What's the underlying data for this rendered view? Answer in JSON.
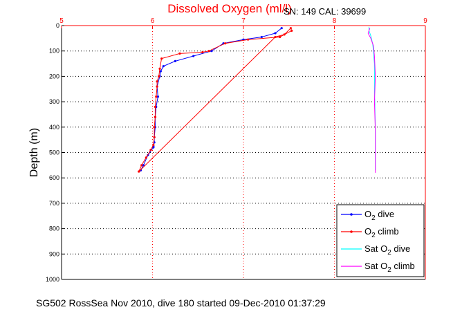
{
  "header": {
    "serial_text": "SN: 149  CAL: 39699"
  },
  "footer": {
    "caption": "SG502 RossSea Nov 2010, dive 180 started 09-Dec-2010 01:37:29"
  },
  "chart_data": {
    "type": "line",
    "title": "Dissolved Oxygen (ml/l)",
    "xlabel": "",
    "ylabel": "Depth (m)",
    "xlim": [
      5,
      9
    ],
    "ylim": [
      0,
      1000
    ],
    "y_reversed": true,
    "x_axis_position": "top",
    "xticks": [
      5,
      6,
      7,
      8,
      9
    ],
    "yticks": [
      0,
      100,
      200,
      300,
      400,
      500,
      600,
      700,
      800,
      900,
      1000
    ],
    "grid": true,
    "legend_position": "bottom-right",
    "colors": {
      "title": "#ff0000",
      "x_axis": "#ff0000",
      "y_axis": "#000000",
      "grid_x": "#ff0000",
      "grid_y": "#000000"
    },
    "series": [
      {
        "name": "O2 dive",
        "legend_text": "O",
        "legend_sub": "2",
        "legend_suffix": " dive",
        "color": "#0000ff",
        "markers": true,
        "x": [
          7.42,
          7.35,
          7.2,
          7.0,
          6.78,
          6.65,
          6.45,
          6.25,
          6.12,
          6.09,
          6.08,
          6.05,
          6.06,
          6.04,
          6.03,
          6.03,
          6.02,
          6.02,
          6.01,
          6.01,
          5.95,
          5.9,
          5.87
        ],
        "y": [
          10,
          30,
          45,
          55,
          70,
          100,
          120,
          140,
          160,
          180,
          200,
          240,
          280,
          320,
          360,
          400,
          440,
          460,
          475,
          480,
          510,
          550,
          570
        ]
      },
      {
        "name": "O2 climb",
        "legend_text": "O",
        "legend_sub": "2",
        "legend_suffix": " climb",
        "color": "#ff0000",
        "markers": true,
        "x": [
          5.85,
          5.88,
          5.93,
          5.98,
          6.01,
          6.02,
          6.02,
          6.03,
          6.03,
          6.04,
          6.05,
          6.05,
          6.07,
          6.08,
          6.1,
          6.3,
          6.55,
          6.62,
          6.8,
          7.05,
          7.4,
          7.53,
          7.52,
          7.45,
          7.35,
          5.85
        ],
        "y": [
          575,
          550,
          520,
          490,
          470,
          440,
          400,
          360,
          320,
          280,
          240,
          220,
          200,
          170,
          130,
          110,
          105,
          100,
          70,
          55,
          45,
          20,
          10,
          35,
          45,
          575
        ]
      },
      {
        "name": "Sat O2 dive",
        "legend_text": "Sat O",
        "legend_sub": "2",
        "legend_suffix": " dive",
        "color": "#00ffff",
        "markers": false,
        "x": [
          8.38,
          8.38,
          8.4,
          8.42,
          8.43,
          8.44,
          8.44,
          8.45,
          8.45
        ],
        "y": [
          5,
          20,
          40,
          70,
          100,
          150,
          250,
          400,
          570
        ]
      },
      {
        "name": "Sat O2 climb",
        "legend_text": "Sat O",
        "legend_sub": "2",
        "legend_suffix": " climb",
        "color": "#ff00ff",
        "markers": false,
        "x": [
          8.39,
          8.37,
          8.4,
          8.43,
          8.44,
          8.45,
          8.44,
          8.45,
          8.45,
          8.45
        ],
        "y": [
          10,
          30,
          50,
          80,
          120,
          200,
          300,
          420,
          500,
          580
        ]
      }
    ]
  }
}
